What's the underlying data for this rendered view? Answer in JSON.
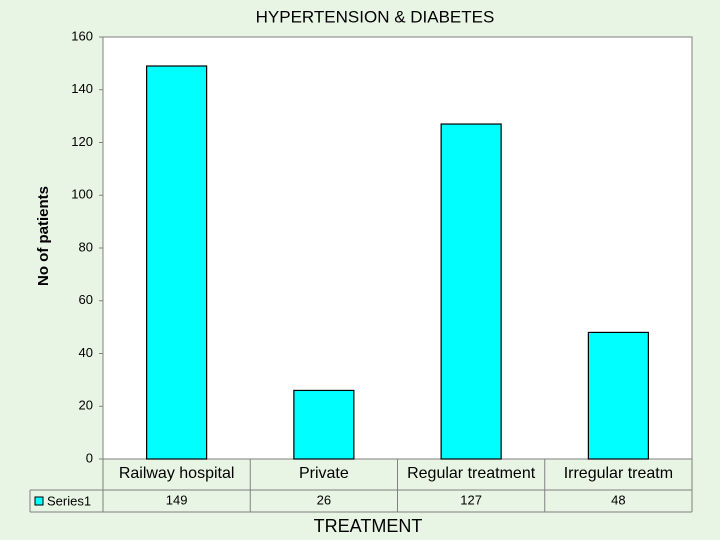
{
  "chart_data": {
    "type": "bar",
    "title": "HYPERTENSION & DIABETES",
    "y_label": "No of patients",
    "x_label": "TREATMENT",
    "categories": [
      "Railway hospital",
      "Private",
      "Regular treatment",
      "Irregular treatm"
    ],
    "series": [
      {
        "name": "Series1",
        "color": "#00ffff",
        "values": [
          149,
          26,
          127,
          48
        ]
      }
    ],
    "ylim": [
      0,
      160
    ],
    "yticks": [
      0,
      20,
      40,
      60,
      80,
      100,
      120,
      140,
      160
    ],
    "grid": false
  }
}
